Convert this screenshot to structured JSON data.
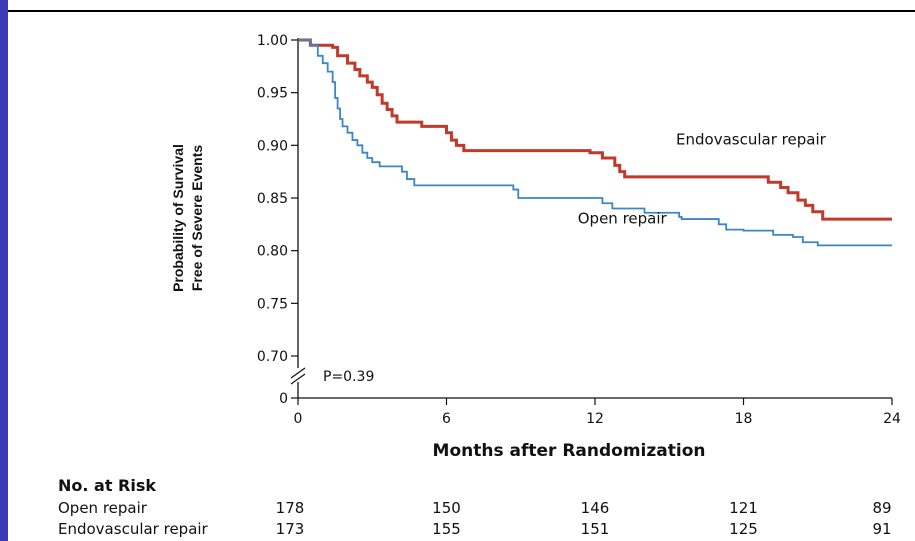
{
  "chart_data": {
    "type": "line",
    "title": "",
    "ylabel_line1": "Probability of Survival",
    "ylabel_line2": "Free of Severe Events",
    "xlabel": "Months after Randomization",
    "xlim": [
      0,
      24
    ],
    "ylim": [
      0.7,
      1.0
    ],
    "x_ticks": [
      "0",
      "6",
      "12",
      "18",
      "24"
    ],
    "y_ticks": [
      "1.00",
      "0.95",
      "0.90",
      "0.85",
      "0.80",
      "0.75",
      "0.70"
    ],
    "y_zero_label": "0",
    "annotation": "P=0.39",
    "series": [
      {
        "name": "Endovascular repair",
        "color": "#c0392b",
        "points": [
          [
            0,
            1.0
          ],
          [
            0.5,
            0.995
          ],
          [
            1.4,
            0.993
          ],
          [
            1.6,
            0.985
          ],
          [
            2.0,
            0.978
          ],
          [
            2.3,
            0.972
          ],
          [
            2.5,
            0.966
          ],
          [
            2.8,
            0.96
          ],
          [
            3.0,
            0.955
          ],
          [
            3.2,
            0.948
          ],
          [
            3.4,
            0.94
          ],
          [
            3.6,
            0.934
          ],
          [
            3.8,
            0.928
          ],
          [
            4.0,
            0.922
          ],
          [
            5.0,
            0.918
          ],
          [
            6.0,
            0.912
          ],
          [
            6.2,
            0.905
          ],
          [
            6.4,
            0.9
          ],
          [
            6.7,
            0.895
          ],
          [
            11.8,
            0.893
          ],
          [
            12.3,
            0.888
          ],
          [
            12.8,
            0.881
          ],
          [
            13.0,
            0.875
          ],
          [
            13.2,
            0.87
          ],
          [
            19.0,
            0.865
          ],
          [
            19.5,
            0.86
          ],
          [
            19.8,
            0.855
          ],
          [
            20.2,
            0.848
          ],
          [
            20.5,
            0.843
          ],
          [
            20.8,
            0.837
          ],
          [
            21.2,
            0.83
          ],
          [
            24.0,
            0.83
          ]
        ]
      },
      {
        "name": "Open repair",
        "color": "#3a86c8",
        "points": [
          [
            0,
            1.0
          ],
          [
            0.5,
            0.995
          ],
          [
            0.8,
            0.985
          ],
          [
            1.0,
            0.978
          ],
          [
            1.2,
            0.97
          ],
          [
            1.4,
            0.96
          ],
          [
            1.5,
            0.945
          ],
          [
            1.6,
            0.935
          ],
          [
            1.7,
            0.925
          ],
          [
            1.8,
            0.918
          ],
          [
            2.0,
            0.912
          ],
          [
            2.2,
            0.905
          ],
          [
            2.4,
            0.9
          ],
          [
            2.6,
            0.893
          ],
          [
            2.8,
            0.888
          ],
          [
            3.0,
            0.884
          ],
          [
            3.3,
            0.88
          ],
          [
            4.2,
            0.875
          ],
          [
            4.4,
            0.868
          ],
          [
            4.7,
            0.862
          ],
          [
            8.7,
            0.858
          ],
          [
            8.9,
            0.85
          ],
          [
            12.3,
            0.845
          ],
          [
            12.7,
            0.84
          ],
          [
            14.0,
            0.836
          ],
          [
            15.4,
            0.832
          ],
          [
            15.5,
            0.83
          ],
          [
            17.0,
            0.825
          ],
          [
            17.3,
            0.82
          ],
          [
            18.0,
            0.819
          ],
          [
            19.2,
            0.815
          ],
          [
            20.0,
            0.813
          ],
          [
            20.4,
            0.808
          ],
          [
            21.0,
            0.805
          ],
          [
            24.0,
            0.805
          ]
        ]
      }
    ],
    "legend_labels": [
      {
        "text": "Endovascular repair",
        "color_ref": "Endovascular repair"
      },
      {
        "text": "Open repair",
        "color_ref": "Open repair"
      }
    ]
  },
  "risk_table": {
    "title": "No. at Risk",
    "rows": [
      {
        "name": "Open repair",
        "values": [
          "178",
          "150",
          "146",
          "121",
          "89"
        ]
      },
      {
        "name": "Endovascular repair",
        "values": [
          "173",
          "155",
          "151",
          "125",
          "91"
        ]
      }
    ]
  }
}
